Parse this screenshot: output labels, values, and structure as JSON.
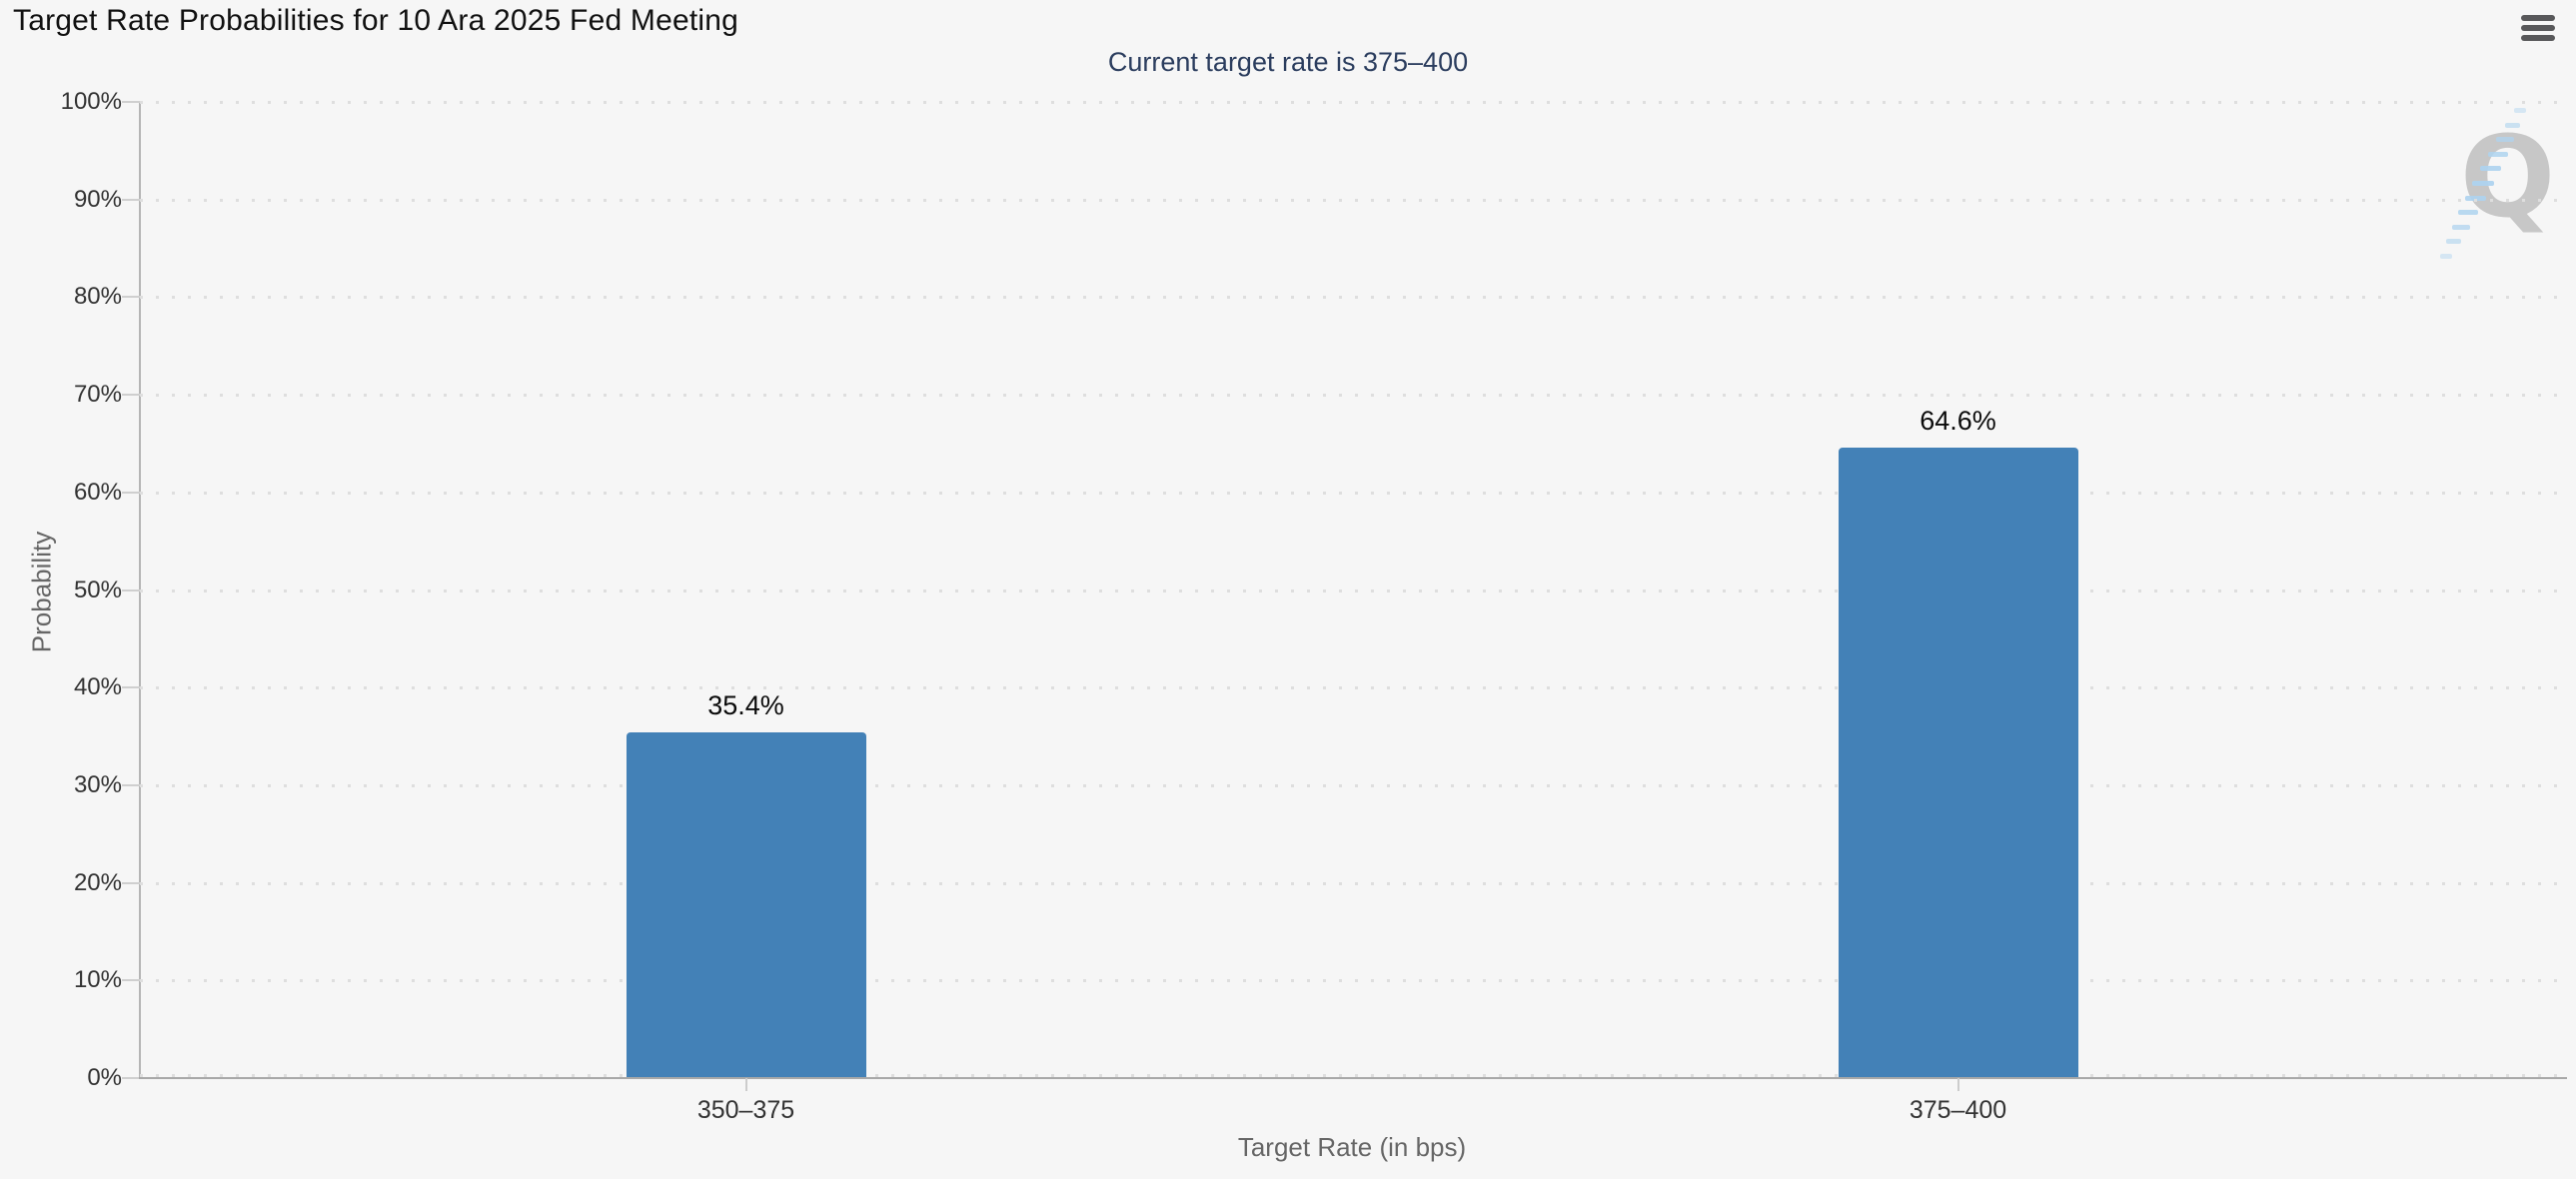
{
  "header": {
    "menu_icon": "hamburger-menu"
  },
  "chart_data": {
    "type": "bar",
    "title": "Target Rate Probabilities for 10 Ara 2025 Fed Meeting",
    "subtitle": "Current target rate is 375–400",
    "categories": [
      "350–375",
      "375–400"
    ],
    "series": [
      {
        "name": "Probability",
        "values": [
          35.4,
          64.6
        ]
      }
    ],
    "value_labels": [
      "35.4%",
      "64.6%"
    ],
    "xlabel": "Target Rate (in bps)",
    "ylabel": "Probability",
    "ylim": [
      0,
      100
    ],
    "ytick_step": 10,
    "ytick_labels": [
      "0%",
      "10%",
      "20%",
      "30%",
      "40%",
      "50%",
      "60%",
      "70%",
      "80%",
      "90%",
      "100%"
    ],
    "bar_color": "#4381b7",
    "grid": {
      "horizontal": "dotted",
      "vertical": "none"
    },
    "legend": "none",
    "background_color": "#f6f6f6",
    "subtitle_color": "#2b3d5e",
    "watermark_letter": "Q"
  }
}
